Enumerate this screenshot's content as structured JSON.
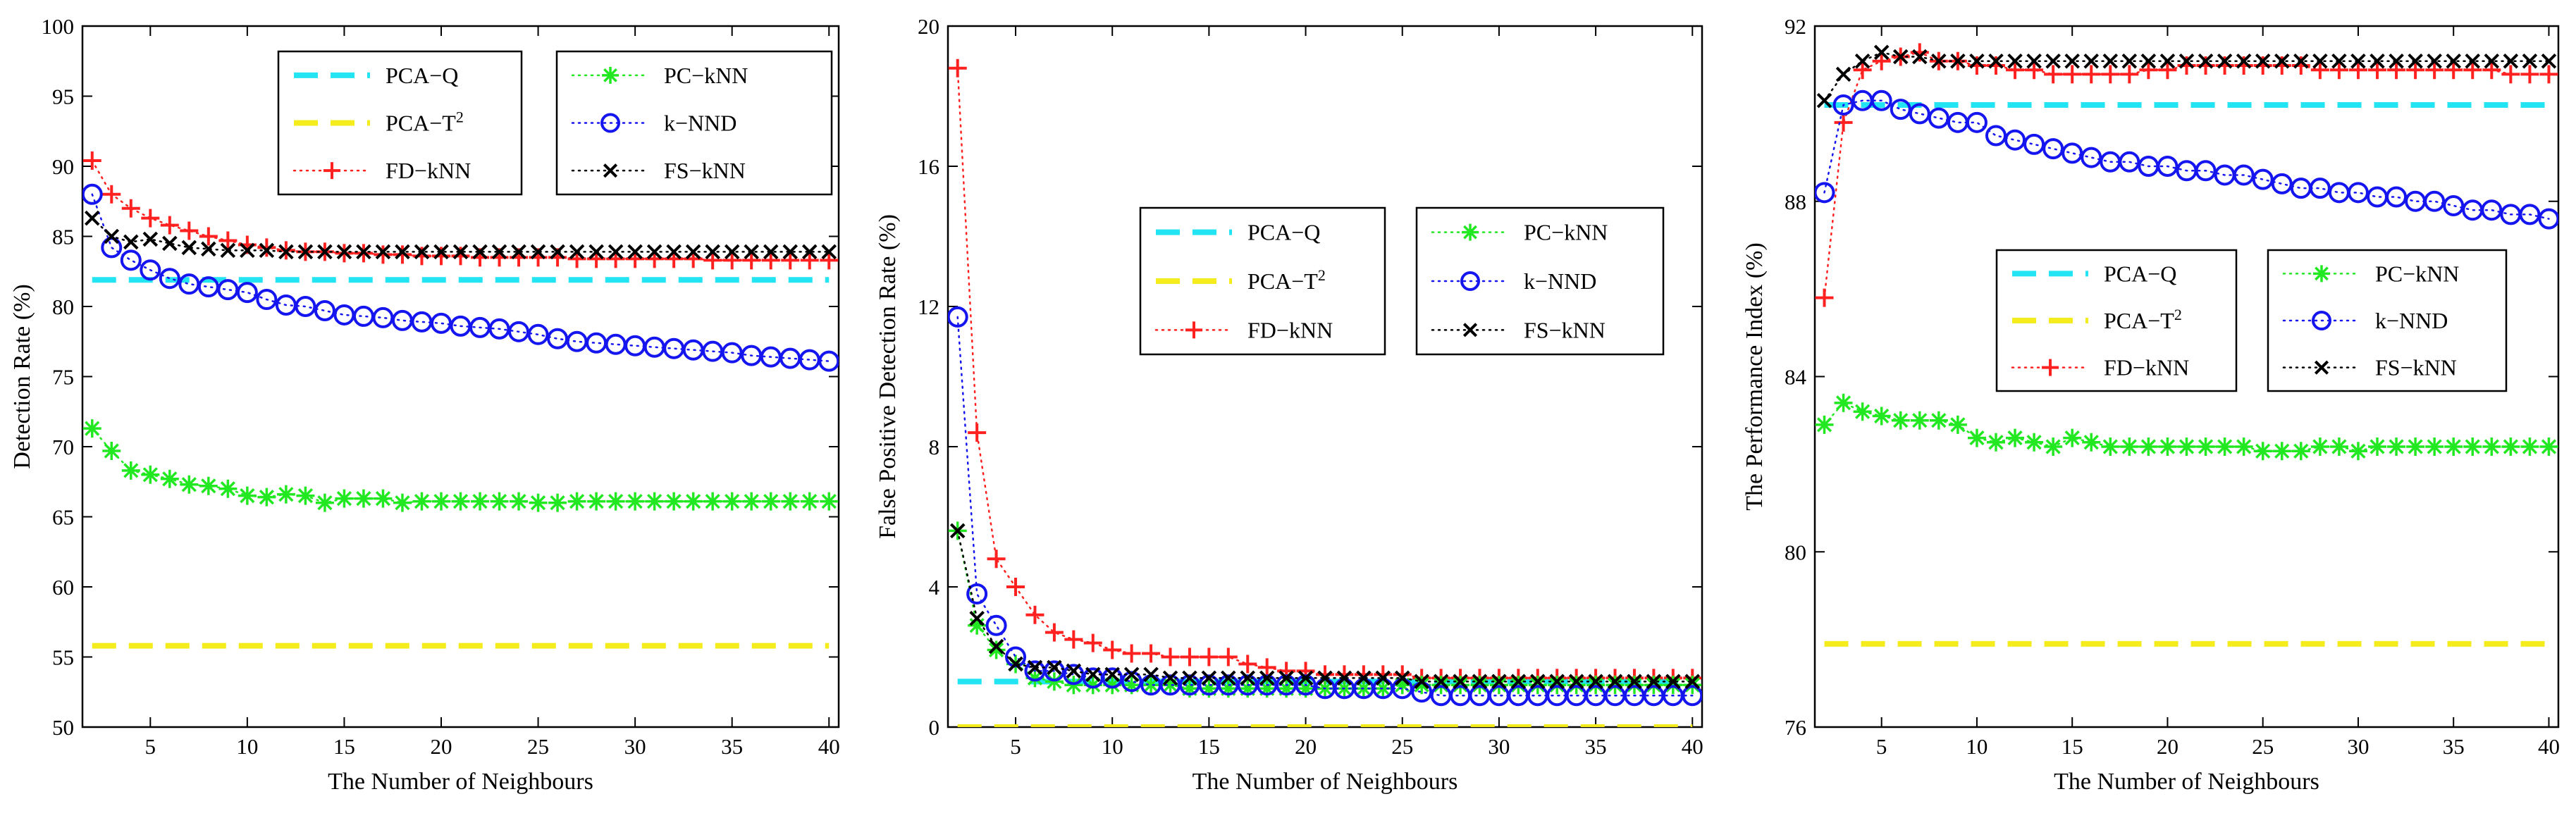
{
  "chart_data": [
    {
      "type": "line",
      "title": "",
      "xlabel": "The Number of Neighbours",
      "ylabel": "Detection Rate (%)",
      "xlim": [
        1.5,
        40.5
      ],
      "ylim": [
        50,
        100
      ],
      "xticks": [
        5,
        10,
        15,
        20,
        25,
        30,
        35,
        40
      ],
      "yticks": [
        50,
        55,
        60,
        65,
        70,
        75,
        80,
        85,
        90,
        95,
        100
      ],
      "x": [
        2,
        3,
        4,
        5,
        6,
        7,
        8,
        9,
        10,
        11,
        12,
        13,
        14,
        15,
        16,
        17,
        18,
        19,
        20,
        21,
        22,
        23,
        24,
        25,
        26,
        27,
        28,
        29,
        30,
        31,
        32,
        33,
        34,
        35,
        36,
        37,
        38,
        39,
        40
      ],
      "series": [
        {
          "name": "PCA−Q",
          "style": "hline",
          "value": 81.9
        },
        {
          "name": "PCA−T",
          "sup": "2",
          "style": "hline",
          "value": 55.8
        },
        {
          "name": "FD−kNN",
          "style": "plus",
          "values": [
            90.4,
            88.0,
            87.0,
            86.3,
            85.8,
            85.4,
            85.0,
            84.7,
            84.4,
            84.2,
            84.0,
            83.9,
            83.9,
            83.8,
            83.8,
            83.7,
            83.7,
            83.6,
            83.6,
            83.6,
            83.5,
            83.5,
            83.5,
            83.5,
            83.5,
            83.4,
            83.4,
            83.4,
            83.4,
            83.4,
            83.4,
            83.4,
            83.3,
            83.3,
            83.3,
            83.3,
            83.3,
            83.3,
            83.3
          ]
        },
        {
          "name": "PC−kNN",
          "style": "star",
          "values": [
            71.3,
            69.7,
            68.3,
            68.0,
            67.7,
            67.3,
            67.2,
            67.0,
            66.5,
            66.4,
            66.6,
            66.5,
            66.0,
            66.3,
            66.3,
            66.3,
            66.0,
            66.1,
            66.1,
            66.1,
            66.1,
            66.1,
            66.1,
            66.0,
            66.0,
            66.1,
            66.1,
            66.1,
            66.1,
            66.1,
            66.1,
            66.1,
            66.1,
            66.1,
            66.1,
            66.1,
            66.1,
            66.1,
            66.1
          ]
        },
        {
          "name": "k−NND",
          "style": "circle",
          "values": [
            88.0,
            84.2,
            83.3,
            82.6,
            82.0,
            81.6,
            81.4,
            81.2,
            81.0,
            80.5,
            80.1,
            80.0,
            79.7,
            79.4,
            79.3,
            79.2,
            79.0,
            78.9,
            78.8,
            78.6,
            78.5,
            78.4,
            78.2,
            78.0,
            77.7,
            77.5,
            77.4,
            77.3,
            77.2,
            77.1,
            77.0,
            76.9,
            76.8,
            76.7,
            76.5,
            76.4,
            76.3,
            76.2,
            76.1
          ]
        },
        {
          "name": "FS−kNN",
          "style": "cross",
          "values": [
            86.3,
            85.0,
            84.6,
            84.8,
            84.5,
            84.2,
            84.1,
            84.0,
            84.0,
            84.0,
            83.9,
            83.9,
            83.9,
            83.9,
            83.9,
            83.9,
            83.9,
            83.9,
            83.9,
            83.9,
            83.9,
            83.9,
            83.9,
            83.9,
            83.9,
            83.9,
            83.9,
            83.9,
            83.9,
            83.9,
            83.9,
            83.9,
            83.9,
            83.9,
            83.9,
            83.9,
            83.9,
            83.9,
            83.9
          ]
        }
      ]
    },
    {
      "type": "line",
      "title": "",
      "xlabel": "The Number of Neighbours",
      "ylabel": "False Positive Detection Rate (%)",
      "xlim": [
        1.5,
        40.5
      ],
      "ylim": [
        0,
        20
      ],
      "xticks": [
        5,
        10,
        15,
        20,
        25,
        30,
        35,
        40
      ],
      "yticks": [
        0,
        4,
        8,
        12,
        16,
        20
      ],
      "x": [
        2,
        3,
        4,
        5,
        6,
        7,
        8,
        9,
        10,
        11,
        12,
        13,
        14,
        15,
        16,
        17,
        18,
        19,
        20,
        21,
        22,
        23,
        24,
        25,
        26,
        27,
        28,
        29,
        30,
        31,
        32,
        33,
        34,
        35,
        36,
        37,
        38,
        39,
        40
      ],
      "series": [
        {
          "name": "PCA−Q",
          "style": "hline",
          "value": 1.3
        },
        {
          "name": "PCA−T",
          "sup": "2",
          "style": "hline",
          "value": 0.0
        },
        {
          "name": "FD−kNN",
          "style": "plus",
          "values": [
            18.8,
            8.4,
            4.8,
            4.0,
            3.2,
            2.7,
            2.5,
            2.4,
            2.2,
            2.1,
            2.1,
            2.0,
            2.0,
            2.0,
            2.0,
            1.8,
            1.7,
            1.6,
            1.6,
            1.5,
            1.5,
            1.5,
            1.5,
            1.5,
            1.4,
            1.4,
            1.4,
            1.4,
            1.4,
            1.4,
            1.4,
            1.4,
            1.4,
            1.4,
            1.4,
            1.4,
            1.4,
            1.4,
            1.4
          ]
        },
        {
          "name": "PC−kNN",
          "style": "star",
          "values": [
            5.6,
            2.9,
            2.2,
            1.8,
            1.4,
            1.3,
            1.2,
            1.2,
            1.2,
            1.2,
            1.2,
            1.2,
            1.1,
            1.1,
            1.1,
            1.1,
            1.1,
            1.1,
            1.1,
            1.1,
            1.1,
            1.1,
            1.1,
            1.2,
            1.2,
            1.2,
            1.2,
            1.2,
            1.2,
            1.2,
            1.2,
            1.2,
            1.2,
            1.2,
            1.2,
            1.2,
            1.2,
            1.2,
            1.2
          ]
        },
        {
          "name": "k−NND",
          "style": "circle",
          "values": [
            11.7,
            3.8,
            2.9,
            2.0,
            1.6,
            1.6,
            1.5,
            1.4,
            1.4,
            1.3,
            1.2,
            1.2,
            1.2,
            1.2,
            1.2,
            1.2,
            1.2,
            1.2,
            1.2,
            1.1,
            1.1,
            1.1,
            1.1,
            1.1,
            1.0,
            0.9,
            0.9,
            0.9,
            0.9,
            0.9,
            0.9,
            0.9,
            0.9,
            0.9,
            0.9,
            0.9,
            0.9,
            0.9,
            0.9
          ]
        },
        {
          "name": "FS−kNN",
          "style": "cross",
          "values": [
            5.6,
            3.1,
            2.3,
            1.8,
            1.7,
            1.7,
            1.6,
            1.5,
            1.5,
            1.5,
            1.5,
            1.4,
            1.4,
            1.4,
            1.4,
            1.4,
            1.4,
            1.4,
            1.4,
            1.4,
            1.4,
            1.4,
            1.4,
            1.4,
            1.3,
            1.3,
            1.3,
            1.3,
            1.3,
            1.3,
            1.3,
            1.3,
            1.3,
            1.3,
            1.3,
            1.3,
            1.3,
            1.3,
            1.3
          ]
        }
      ]
    },
    {
      "type": "line",
      "title": "",
      "xlabel": "The Number of Neighbours",
      "ylabel": "The Performance Index (%)",
      "xlim": [
        1.5,
        40.5
      ],
      "ylim": [
        76,
        92
      ],
      "xticks": [
        5,
        10,
        15,
        20,
        25,
        30,
        35,
        40
      ],
      "yticks": [
        76,
        80,
        84,
        88,
        92
      ],
      "x": [
        2,
        3,
        4,
        5,
        6,
        7,
        8,
        9,
        10,
        11,
        12,
        13,
        14,
        15,
        16,
        17,
        18,
        19,
        20,
        21,
        22,
        23,
        24,
        25,
        26,
        27,
        28,
        29,
        30,
        31,
        32,
        33,
        34,
        35,
        36,
        37,
        38,
        39,
        40
      ],
      "series": [
        {
          "name": "PCA−Q",
          "style": "hline",
          "value": 90.2
        },
        {
          "name": "PCA−T",
          "sup": "2",
          "style": "hline",
          "value": 77.9
        },
        {
          "name": "FD−kNN",
          "style": "plus",
          "values": [
            85.8,
            89.8,
            91.0,
            91.2,
            91.3,
            91.4,
            91.2,
            91.2,
            91.1,
            91.1,
            91.0,
            91.0,
            90.9,
            90.9,
            90.9,
            90.9,
            90.9,
            91.0,
            91.0,
            91.1,
            91.1,
            91.1,
            91.1,
            91.1,
            91.1,
            91.1,
            91.0,
            91.0,
            91.0,
            91.0,
            91.0,
            91.0,
            91.0,
            91.0,
            91.0,
            91.0,
            90.9,
            90.9,
            90.9
          ]
        },
        {
          "name": "PC−kNN",
          "style": "star",
          "values": [
            82.9,
            83.4,
            83.2,
            83.1,
            83.0,
            83.0,
            83.0,
            82.9,
            82.6,
            82.5,
            82.6,
            82.5,
            82.4,
            82.6,
            82.5,
            82.4,
            82.4,
            82.4,
            82.4,
            82.4,
            82.4,
            82.4,
            82.4,
            82.3,
            82.3,
            82.3,
            82.4,
            82.4,
            82.3,
            82.4,
            82.4,
            82.4,
            82.4,
            82.4,
            82.4,
            82.4,
            82.4,
            82.4,
            82.4
          ]
        },
        {
          "name": "k−NND",
          "style": "circle",
          "values": [
            88.2,
            90.2,
            90.3,
            90.3,
            90.1,
            90.0,
            89.9,
            89.8,
            89.8,
            89.5,
            89.4,
            89.3,
            89.2,
            89.1,
            89.0,
            88.9,
            88.9,
            88.8,
            88.8,
            88.7,
            88.7,
            88.6,
            88.6,
            88.5,
            88.4,
            88.3,
            88.3,
            88.2,
            88.2,
            88.1,
            88.1,
            88.0,
            88.0,
            87.9,
            87.8,
            87.8,
            87.7,
            87.7,
            87.6
          ]
        },
        {
          "name": "FS−kNN",
          "style": "cross",
          "values": [
            90.3,
            90.9,
            91.2,
            91.4,
            91.3,
            91.3,
            91.2,
            91.2,
            91.2,
            91.2,
            91.2,
            91.2,
            91.2,
            91.2,
            91.2,
            91.2,
            91.2,
            91.2,
            91.2,
            91.2,
            91.2,
            91.2,
            91.2,
            91.2,
            91.2,
            91.2,
            91.2,
            91.2,
            91.2,
            91.2,
            91.2,
            91.2,
            91.2,
            91.2,
            91.2,
            91.2,
            91.2,
            91.2,
            91.2
          ]
        }
      ]
    }
  ],
  "legend_placement": [
    "top-center",
    "upper-center",
    "center"
  ],
  "colors": {
    "PCA−Q": "#22e4f2",
    "PCA−T": "#f4ec1c",
    "FD−kNN": "#ff2020",
    "PC−kNN": "#22e822",
    "k−NND": "#1515f0",
    "FS−kNN": "#000000"
  }
}
